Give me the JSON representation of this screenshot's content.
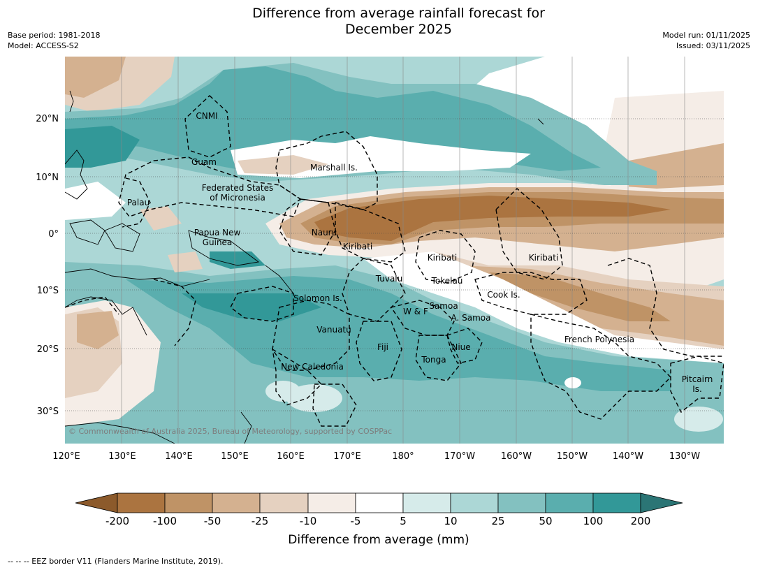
{
  "title": {
    "line1": "Difference from average rainfall forecast for",
    "line2": "December 2025"
  },
  "meta": {
    "base_period": "Base period: 1981-2018",
    "model": "Model: ACCESS-S2",
    "model_run": "Model run: 01/11/2025",
    "issued": "Issued: 03/11/2025"
  },
  "map": {
    "lon_ticks": [
      "120°E",
      "130°E",
      "140°E",
      "150°E",
      "160°E",
      "170°E",
      "180°",
      "170°W",
      "160°W",
      "150°W",
      "140°W",
      "130°W"
    ],
    "lat_ticks": [
      "20°N",
      "10°N",
      "0°",
      "10°S",
      "20°S",
      "30°S"
    ],
    "labels": {
      "cnmi": "CNMI",
      "guam": "Guam",
      "marshall": "Marshall Is.",
      "fsm1": "Federated States",
      "fsm2": "of Micronesia",
      "palau": "Palau",
      "png1": "Papua New",
      "png2": "Guinea",
      "nauru": "Nauru",
      "kiribati_w": "Kiribati",
      "kiribati_c": "Kiribati",
      "kiribati_e": "Kiribati",
      "tuvalu": "Tuvalu",
      "tokelau": "Tokelau",
      "cook": "Cook Is.",
      "solomon": "Solomon Is.",
      "wf": "W & F",
      "samoa": "Samoa",
      "asamoa": "A. Samoa",
      "vanuatu": "Vanuatu",
      "fiji": "Fiji",
      "niue": "Niue",
      "tonga": "Tonga",
      "fp": "French Polynesia",
      "newcal": "New Caledonia",
      "pitcairn1": "Pitcairn",
      "pitcairn2": "Is."
    },
    "copyright": "© Commonwealth of Australia 2025, Bureau of Meteorology, supported by COSPPac"
  },
  "colorbar": {
    "ticks": [
      "-200",
      "-100",
      "-50",
      "-25",
      "-10",
      "-5",
      "5",
      "10",
      "25",
      "50",
      "100",
      "200"
    ],
    "colors": [
      "#8c5a2b",
      "#ab7440",
      "#bf9366",
      "#d4b190",
      "#e5d1c0",
      "#f5ede7",
      "#ffffff",
      "#d6ebea",
      "#acd7d6",
      "#83c1c0",
      "#5aaeae",
      "#329898",
      "#2b7575"
    ],
    "title": "Difference from average (mm)"
  },
  "footnote": "--  --  -- EEZ border V11 (Flanders Marine Institute, 2019)."
}
